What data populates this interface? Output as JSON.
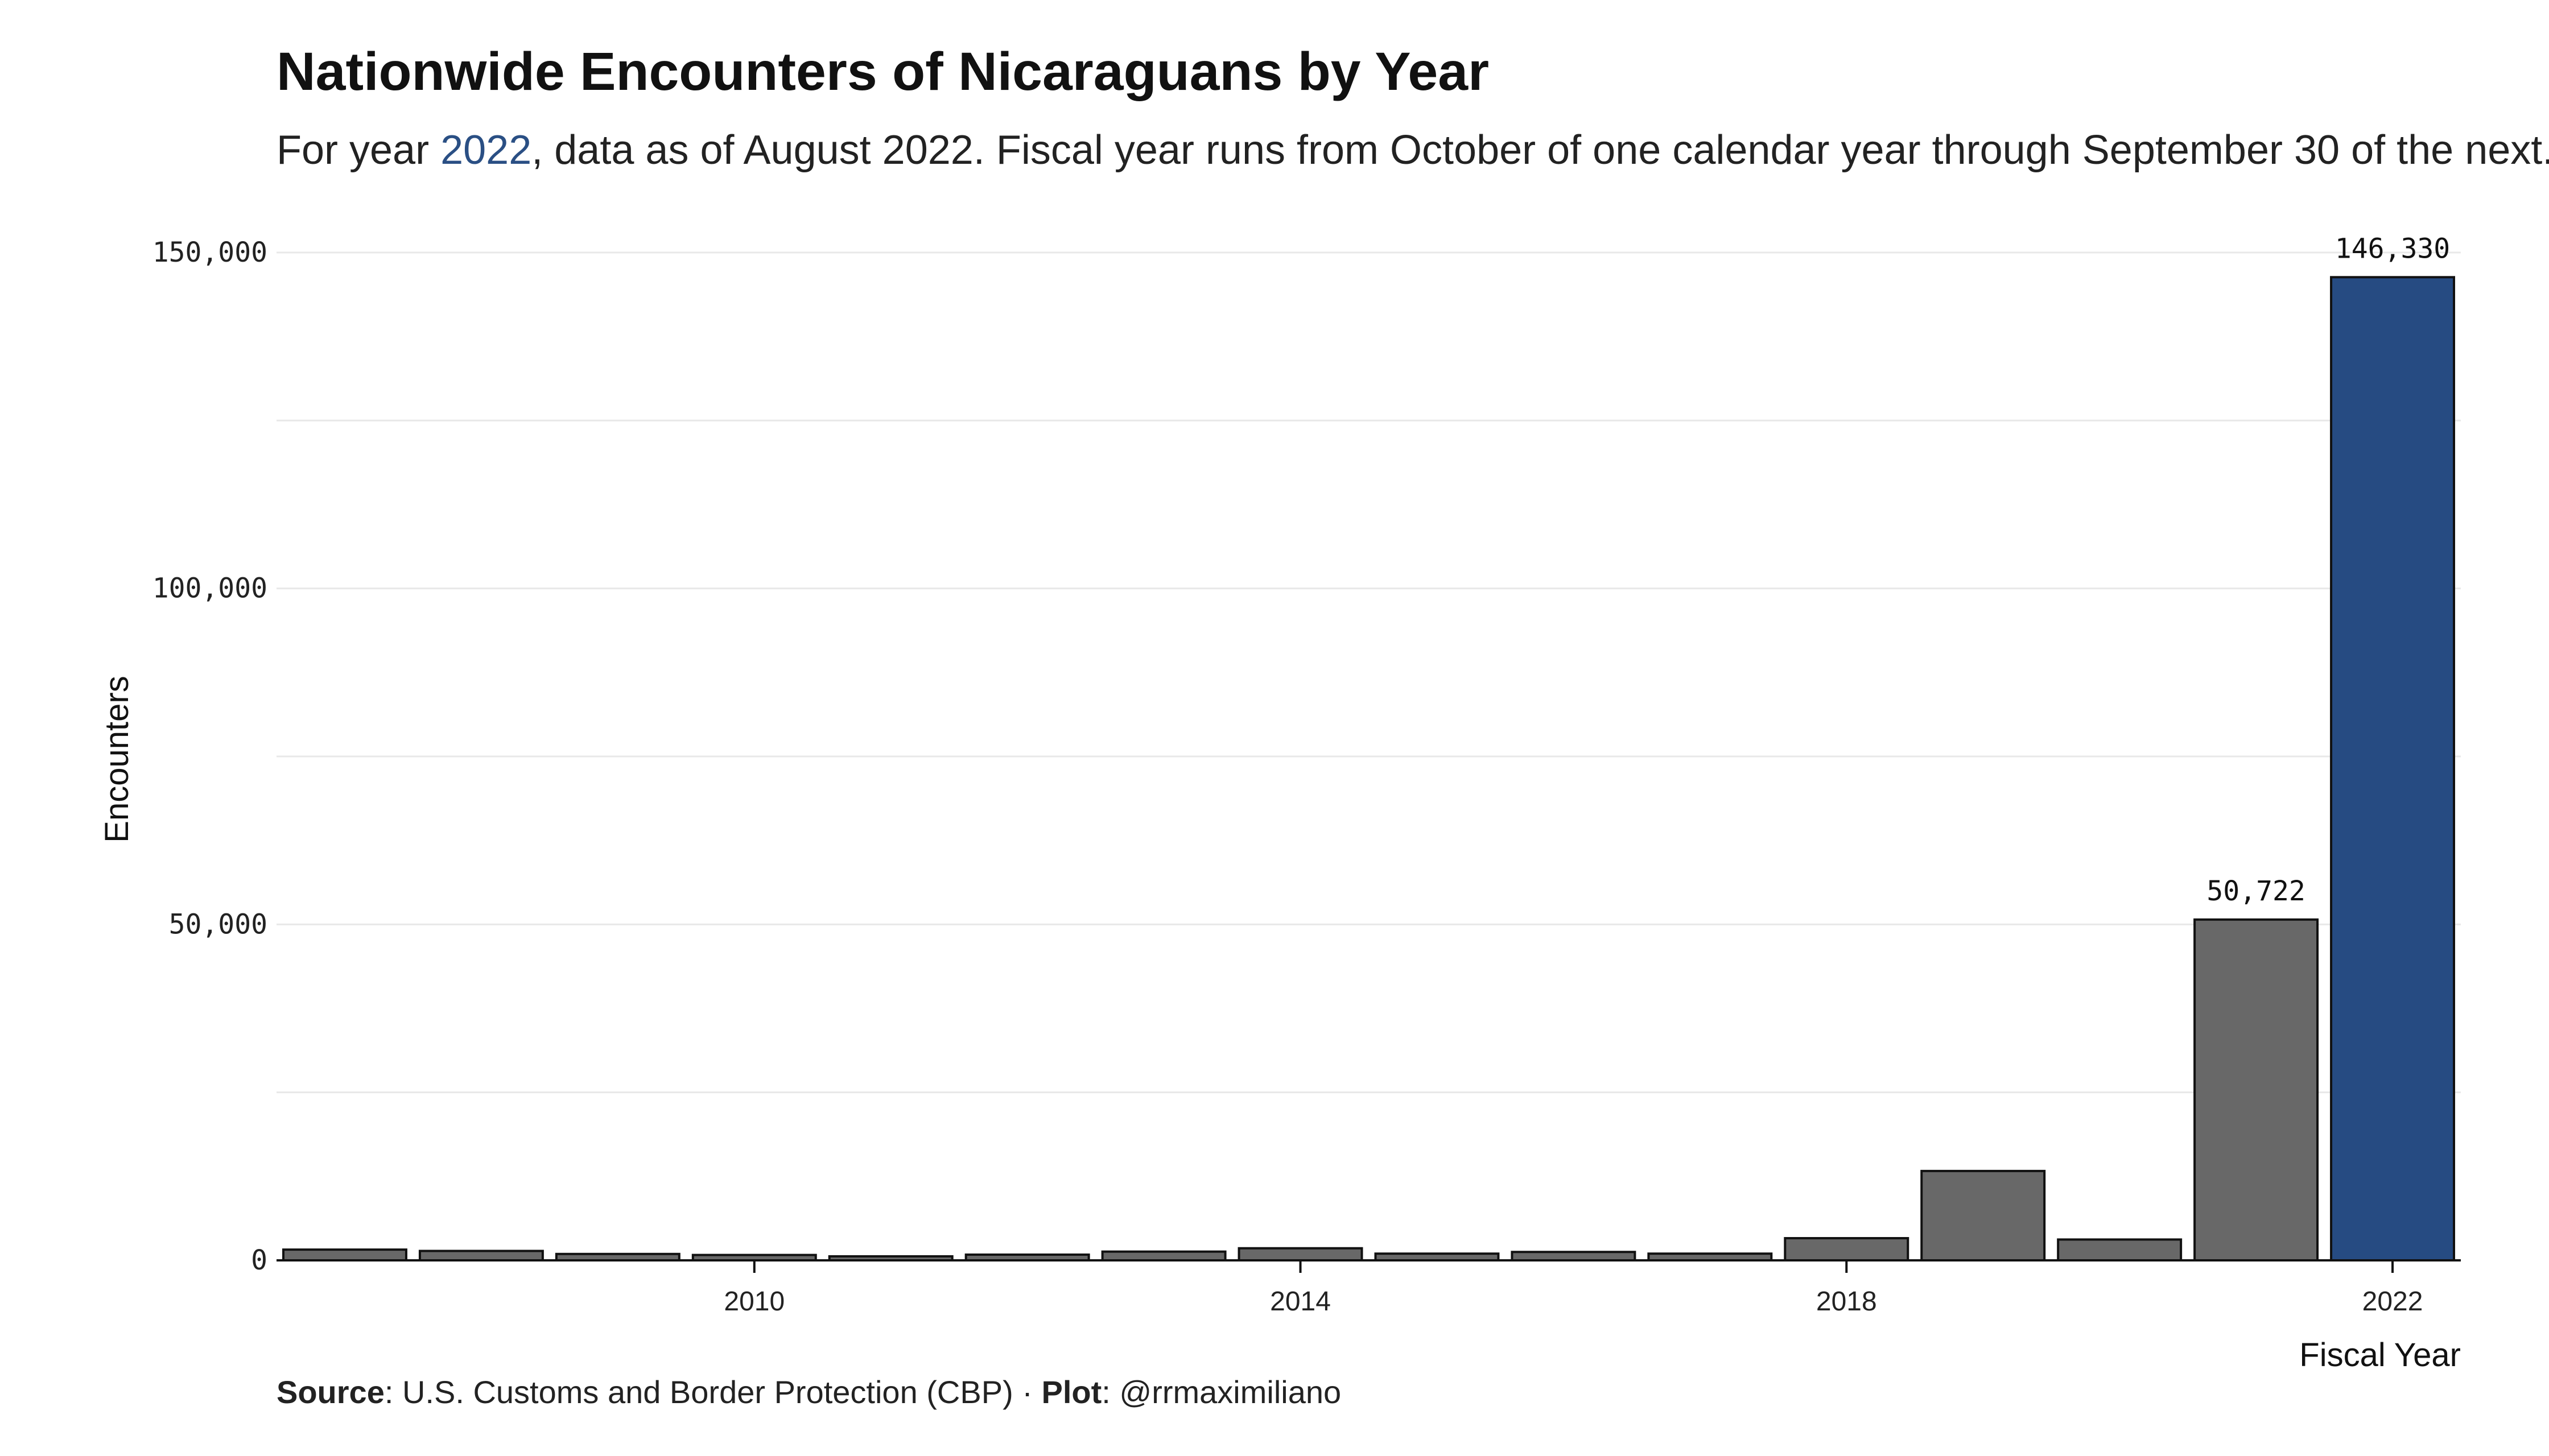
{
  "chart_data": {
    "type": "bar",
    "title": "Nationwide Encounters of Nicaraguans by Year",
    "subtitle": {
      "prefix": "For year ",
      "highlight": "2022",
      "suffix": ", data as of August 2022. Fiscal year runs from October of one calendar year through September 30 of the next."
    },
    "xlabel": "Fiscal Year",
    "ylabel": "Encounters",
    "categories": [
      2007,
      2008,
      2009,
      2010,
      2011,
      2012,
      2013,
      2014,
      2015,
      2016,
      2017,
      2018,
      2019,
      2020,
      2021,
      2022
    ],
    "values": [
      1600,
      1400,
      950,
      800,
      600,
      850,
      1300,
      1800,
      1000,
      1250,
      1000,
      3300,
      13300,
      3100,
      50722,
      146330
    ],
    "ylim": [
      0,
      150000
    ],
    "yticks": [
      0,
      50000,
      100000,
      150000
    ],
    "ytick_labels": [
      "0",
      "50,000",
      "100,000",
      "150,000"
    ],
    "xticks": [
      2010,
      2014,
      2018,
      2022
    ],
    "xtick_labels": [
      "2010",
      "2014",
      "2018",
      "2022"
    ],
    "data_labels": [
      {
        "category": 2021,
        "text": "50,722"
      },
      {
        "category": 2022,
        "text": "146,330"
      }
    ],
    "highlight_category": 2022,
    "grid": true,
    "colors": {
      "bar": "#686868",
      "highlight": "#264b82",
      "bar_stroke": "#111111",
      "grid": "#e8e8e8",
      "subtitle_highlight": "#2a4f84"
    },
    "caption": {
      "source_label": "Source",
      "source_text": ": U.S. Customs and Border Protection (CBP) · ",
      "plot_label": "Plot",
      "plot_text": ": @rrmaximiliano"
    }
  }
}
